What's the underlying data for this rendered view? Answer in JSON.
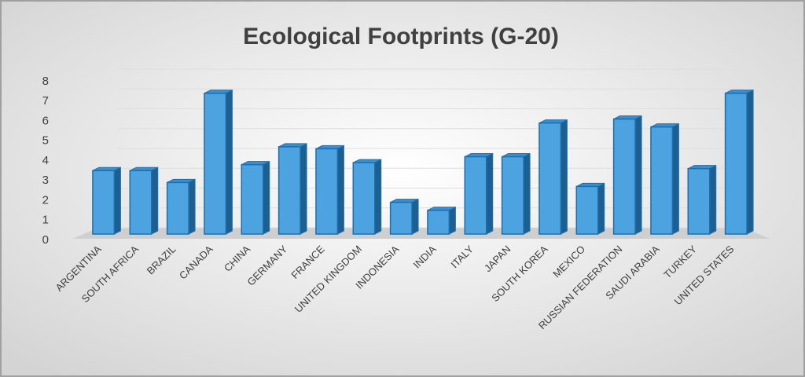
{
  "chart_data": {
    "type": "bar",
    "title": "Ecological Footprints (G-20)",
    "categories": [
      "ARGENTINA",
      "SOUTH AFRICA",
      "BRAZIL",
      "CANADA",
      "CHINA",
      "GERMANY",
      "FRANCE",
      "UNITED KINGDOM",
      "INDONESIA",
      "INDIA",
      "ITALY",
      "JAPAN",
      "SOUTH KOREA",
      "MEXICO",
      "RUSSIAN FEDERATION",
      "SAUDI ARABIA",
      "TURKEY",
      "UNITED STATES"
    ],
    "values": [
      3.2,
      3.2,
      2.6,
      7.1,
      3.5,
      4.4,
      4.3,
      3.6,
      1.6,
      1.2,
      3.9,
      3.9,
      5.6,
      2.4,
      5.8,
      5.4,
      3.3,
      7.1
    ],
    "color": "#4da3e0",
    "ylim": [
      0,
      8
    ],
    "yticks": [
      0,
      1,
      2,
      3,
      4,
      5,
      6,
      7,
      8
    ],
    "grid": true
  }
}
